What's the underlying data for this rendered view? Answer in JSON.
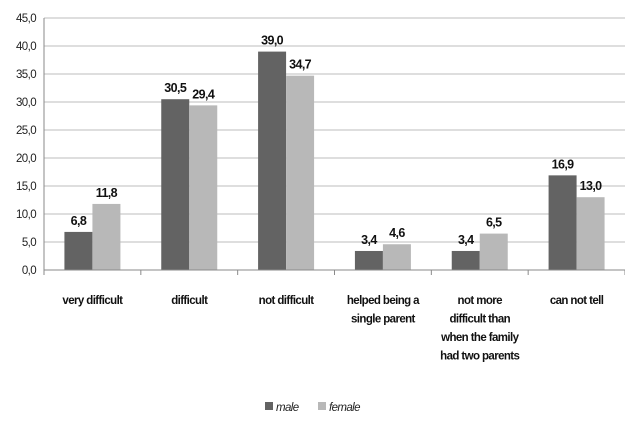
{
  "chart_data": {
    "type": "bar",
    "categories": [
      [
        "very difficult"
      ],
      [
        "difficult"
      ],
      [
        "not difficult"
      ],
      [
        "helped being a",
        "single parent"
      ],
      [
        "not more",
        "difficult than",
        "when the family",
        "had two parents"
      ],
      [
        "can not tell"
      ]
    ],
    "series": [
      {
        "name": "male",
        "color": "#636363",
        "values": [
          6.8,
          30.5,
          39.0,
          3.4,
          3.4,
          16.9
        ],
        "labels": [
          "6,8",
          "30,5",
          "39,0",
          "3,4",
          "3,4",
          "16,9"
        ]
      },
      {
        "name": "female",
        "color": "#b8b8b8",
        "values": [
          11.8,
          29.4,
          34.7,
          4.6,
          6.5,
          13.0
        ],
        "labels": [
          "11,8",
          "29,4",
          "34,7",
          "4,6",
          "6,5",
          "13,0"
        ]
      }
    ],
    "yticks": [
      "0,0",
      "5,0",
      "10,0",
      "15,0",
      "20,0",
      "25,0",
      "30,0",
      "35,0",
      "40,0",
      "45,0"
    ],
    "ylim": [
      0,
      45
    ],
    "grid": true,
    "legend_position": "bottom"
  }
}
